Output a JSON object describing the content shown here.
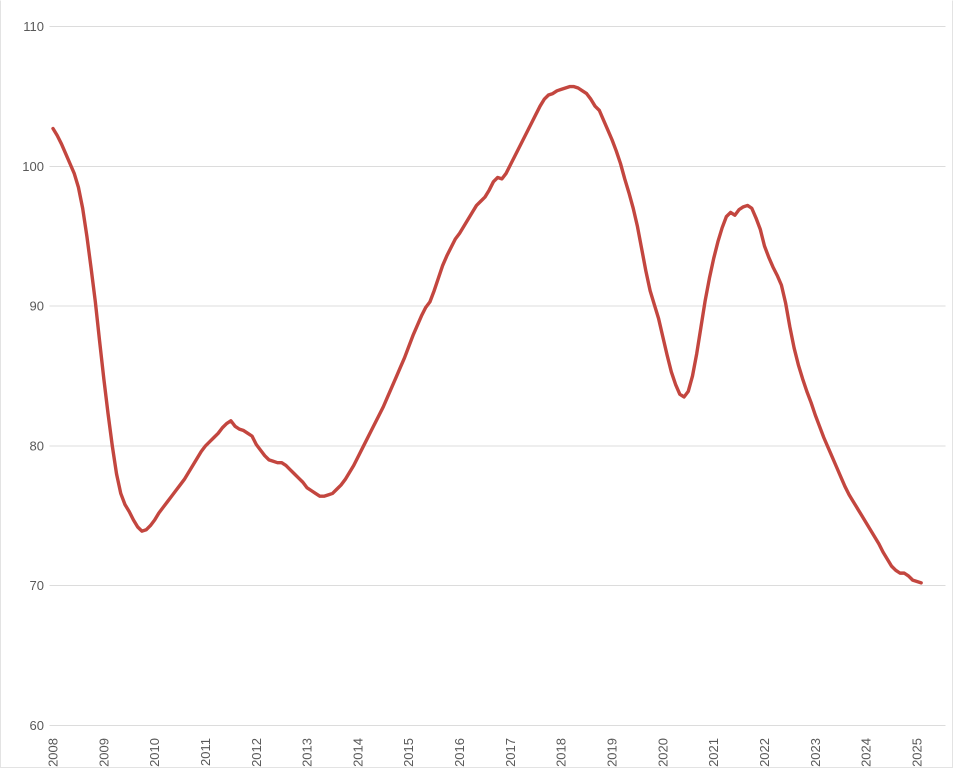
{
  "chart_data": {
    "type": "line",
    "title": "",
    "xlabel": "",
    "ylabel": "",
    "x_start": "2008-01",
    "x_frequency": "monthly",
    "x_tick_labels": [
      "2008",
      "2009",
      "2010",
      "2011",
      "2012",
      "2013",
      "2014",
      "2015",
      "2016",
      "2017",
      "2018",
      "2019",
      "2020",
      "2021",
      "2022",
      "2023",
      "2024",
      "2025"
    ],
    "y_ticks": [
      "110",
      "100",
      "90",
      "80",
      "70",
      "60"
    ],
    "ylim": [
      60,
      110
    ],
    "grid": "horizontal",
    "legend_position": "none",
    "series": [
      {
        "name": "index",
        "color": "#c3463f",
        "values": [
          102.7,
          102.2,
          101.6,
          100.9,
          100.2,
          99.5,
          98.5,
          97.0,
          95.0,
          92.7,
          90.3,
          87.5,
          84.8,
          82.3,
          80.0,
          78.0,
          76.6,
          75.8,
          75.3,
          74.7,
          74.2,
          73.9,
          74.0,
          74.3,
          74.7,
          75.2,
          75.6,
          76.0,
          76.4,
          76.8,
          77.2,
          77.6,
          78.1,
          78.6,
          79.1,
          79.6,
          80.0,
          80.3,
          80.6,
          80.9,
          81.3,
          81.6,
          81.8,
          81.4,
          81.2,
          81.1,
          80.9,
          80.7,
          80.1,
          79.7,
          79.3,
          79.0,
          78.9,
          78.8,
          78.8,
          78.6,
          78.3,
          78.0,
          77.7,
          77.4,
          77.0,
          76.8,
          76.6,
          76.4,
          76.4,
          76.5,
          76.6,
          76.9,
          77.2,
          77.6,
          78.1,
          78.6,
          79.2,
          79.8,
          80.4,
          81.0,
          81.6,
          82.2,
          82.8,
          83.5,
          84.2,
          84.9,
          85.6,
          86.3,
          87.1,
          87.9,
          88.6,
          89.3,
          89.9,
          90.3,
          91.1,
          92.0,
          92.9,
          93.6,
          94.2,
          94.8,
          95.2,
          95.7,
          96.2,
          96.7,
          97.2,
          97.5,
          97.8,
          98.3,
          98.9,
          99.2,
          99.1,
          99.5,
          100.1,
          100.7,
          101.3,
          101.9,
          102.5,
          103.1,
          103.7,
          104.3,
          104.8,
          105.1,
          105.2,
          105.4,
          105.5,
          105.6,
          105.7,
          105.7,
          105.6,
          105.4,
          105.2,
          104.8,
          104.3,
          104.0,
          103.3,
          102.6,
          101.9,
          101.1,
          100.2,
          99.1,
          98.1,
          97.0,
          95.7,
          94.1,
          92.5,
          91.1,
          90.1,
          89.1,
          87.8,
          86.5,
          85.3,
          84.4,
          83.7,
          83.5,
          83.9,
          85.0,
          86.6,
          88.5,
          90.4,
          92.0,
          93.4,
          94.6,
          95.6,
          96.4,
          96.7,
          96.5,
          96.9,
          97.1,
          97.2,
          97.0,
          96.3,
          95.5,
          94.3,
          93.5,
          92.8,
          92.2,
          91.5,
          90.2,
          88.5,
          87.0,
          85.8,
          84.8,
          83.9,
          83.1,
          82.2,
          81.4,
          80.6,
          79.9,
          79.2,
          78.5,
          77.8,
          77.1,
          76.5,
          76.0,
          75.5,
          75.0,
          74.5,
          74.0,
          73.5,
          73.0,
          72.4,
          71.9,
          71.4,
          71.1,
          70.9,
          70.9,
          70.7,
          70.4,
          70.3,
          70.2
        ]
      }
    ]
  },
  "colors": {
    "background": "#ffffff",
    "gridline": "#dcdcdc",
    "tick_label": "#595959",
    "series_red": "#c3463f",
    "frame_border": "#e3e3e3"
  }
}
